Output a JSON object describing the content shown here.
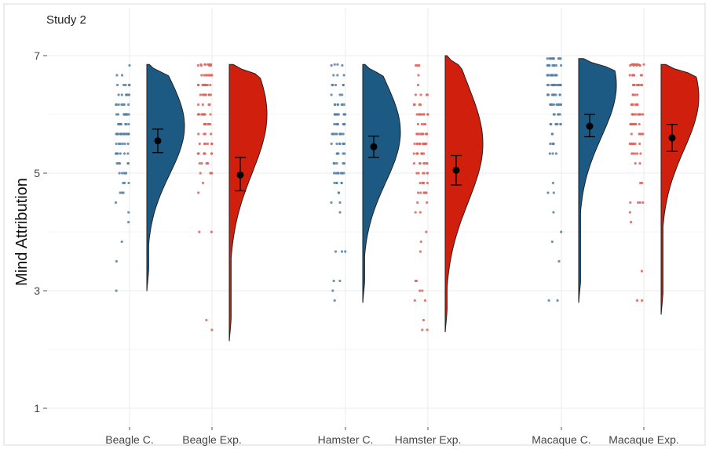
{
  "chart_data": {
    "type": "raincloud",
    "title": "Study 2",
    "ylabel": "Mind Attribution",
    "xlabel": "",
    "ylim": [
      0.8,
      7.3
    ],
    "y_ticks": [
      "1",
      "3",
      "5",
      "7"
    ],
    "grid": true,
    "colors": {
      "control": "#1d5a83",
      "experimental": "#d11f0d",
      "control_points": "#5580a8",
      "experimental_points": "#e0635a"
    },
    "categories": [
      "Beagle C.",
      "Beagle Exp.",
      "Hamster C.",
      "Hamster Exp.",
      "Macaque C.",
      "Macaque Exp."
    ],
    "groups": [
      {
        "label": "Beagle C.",
        "condition": "control",
        "mean": 5.55,
        "ci": [
          5.35,
          5.75
        ],
        "range": [
          3.0,
          6.85
        ],
        "mode": 5.8,
        "min_raw": 3.0
      },
      {
        "label": "Beagle Exp.",
        "condition": "experimental",
        "mean": 4.97,
        "ci": [
          4.7,
          5.27
        ],
        "range": [
          2.15,
          6.85
        ],
        "mode": 6.0,
        "min_raw": 2.15
      },
      {
        "label": "Hamster C.",
        "condition": "control",
        "mean": 5.45,
        "ci": [
          5.27,
          5.63
        ],
        "range": [
          2.8,
          6.85
        ],
        "mode": 5.7,
        "min_raw": 2.8
      },
      {
        "label": "Hamster Exp.",
        "condition": "experimental",
        "mean": 5.05,
        "ci": [
          4.8,
          5.3
        ],
        "range": [
          2.3,
          7.0
        ],
        "mode": 5.5,
        "min_raw": 2.3
      },
      {
        "label": "Macaque C.",
        "condition": "control",
        "mean": 5.8,
        "ci": [
          5.62,
          6.0
        ],
        "range": [
          2.8,
          6.95
        ],
        "mode": 6.5,
        "min_raw": 2.8
      },
      {
        "label": "Macaque Exp.",
        "condition": "experimental",
        "mean": 5.6,
        "ci": [
          5.37,
          5.83
        ],
        "range": [
          2.6,
          6.85
        ],
        "mode": 6.3,
        "min_raw": 2.6
      }
    ]
  }
}
